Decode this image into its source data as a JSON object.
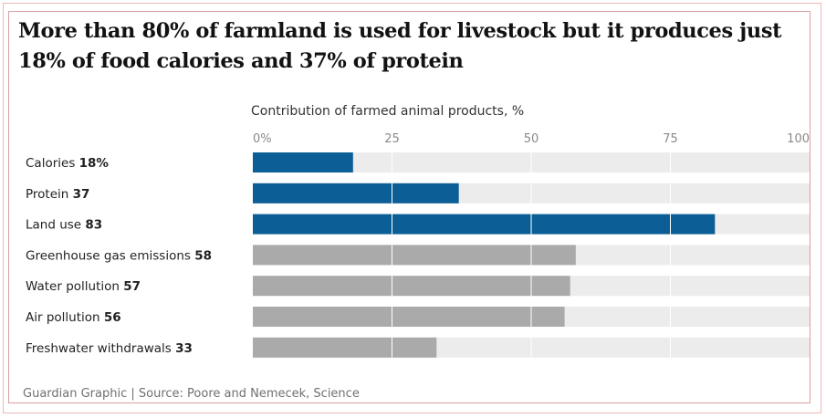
{
  "header": {
    "title": "More than 80% of farmland is used for livestock but it produces just 18% of food calories and 37% of protein"
  },
  "footer": {
    "source": "Guardian Graphic | Source: Poore and Nemecek, Science"
  },
  "colors": {
    "blue": "#0b5f96",
    "grey": "#aaaaaa",
    "track": "#ececec",
    "gridline": "#ffffff"
  },
  "chart_data": {
    "type": "bar",
    "orientation": "horizontal",
    "subtitle": "Contribution of farmed animal products, %",
    "xlim": [
      0,
      100
    ],
    "ticks": [
      0,
      25,
      50,
      75,
      100
    ],
    "tick_labels": [
      "0%",
      "25",
      "50",
      "75",
      "100"
    ],
    "grid": true,
    "categories": [
      "Calories",
      "Protein",
      "Land use",
      "Greenhouse gas emissions",
      "Water pollution",
      "Air pollution",
      "Freshwater withdrawals"
    ],
    "value_labels": [
      "18%",
      "37",
      "83",
      "58",
      "57",
      "56",
      "33"
    ],
    "values": [
      18,
      37,
      83,
      58,
      57,
      56,
      33
    ],
    "bar_colors": [
      "blue",
      "blue",
      "blue",
      "grey",
      "grey",
      "grey",
      "grey"
    ]
  }
}
